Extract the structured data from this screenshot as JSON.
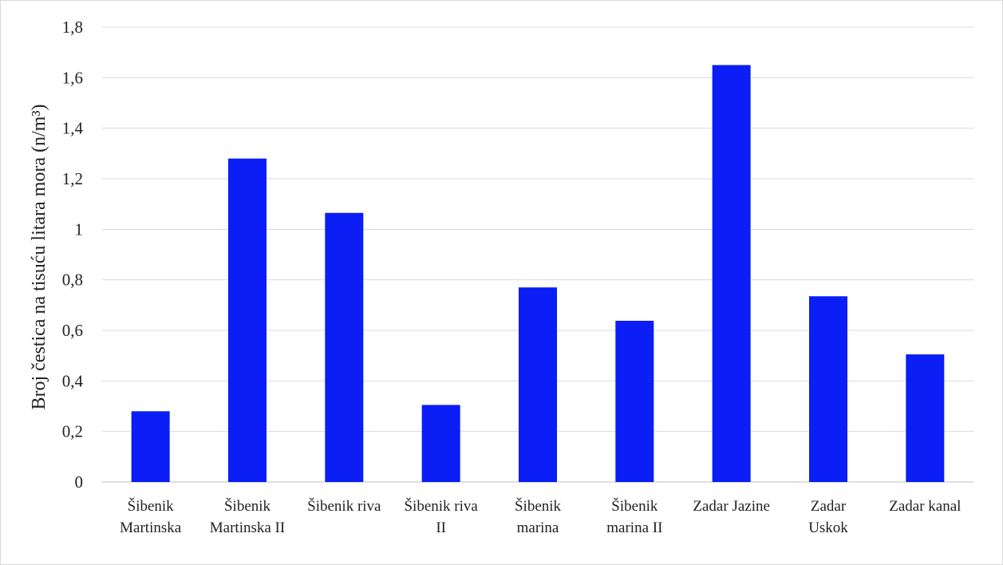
{
  "chart_data": {
    "type": "bar",
    "ylabel": "Broj čestica na tisuću litara mora (n/m³)",
    "ylim": [
      0,
      1.8
    ],
    "yticks": [
      "0",
      "0,2",
      "0,4",
      "0,6",
      "0,8",
      "1",
      "1,2",
      "1,4",
      "1,6",
      "1,8"
    ],
    "grid": true,
    "bar_color": "#0a1ef5",
    "categories": [
      [
        "Šibenik",
        "Martinska"
      ],
      [
        "Šibenik",
        "Martinska II"
      ],
      [
        "Šibenik riva"
      ],
      [
        "Šibenik riva",
        "II"
      ],
      [
        "Šibenik",
        "marina"
      ],
      [
        "Šibenik",
        "marina II"
      ],
      [
        "Zadar Jazine"
      ],
      [
        "Zadar",
        "Uskok"
      ],
      [
        "Zadar kanal"
      ]
    ],
    "values": [
      0.28,
      1.28,
      1.065,
      0.305,
      0.77,
      0.638,
      1.65,
      0.735,
      0.505
    ]
  }
}
